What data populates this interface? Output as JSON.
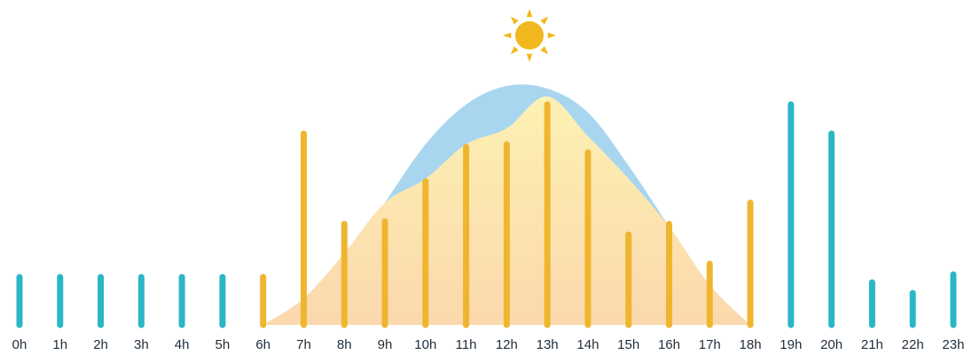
{
  "chart_data": {
    "type": "bar",
    "categories": [
      "0h",
      "1h",
      "2h",
      "3h",
      "4h",
      "5h",
      "6h",
      "7h",
      "8h",
      "9h",
      "10h",
      "11h",
      "12h",
      "13h",
      "14h",
      "15h",
      "16h",
      "17h",
      "18h",
      "19h",
      "20h",
      "21h",
      "22h",
      "23h"
    ],
    "values": [
      18,
      18,
      18,
      18,
      18,
      18,
      18,
      72,
      38,
      39,
      54,
      67,
      68,
      83,
      65,
      34,
      38,
      23,
      46,
      83,
      72,
      16,
      12,
      19
    ],
    "daylight_hours": [
      6,
      18
    ],
    "ylim": [
      0,
      100
    ],
    "grid": false,
    "title": "",
    "xlabel": "",
    "ylabel": "",
    "solar_curve": [
      {
        "x": 6,
        "y": 0
      },
      {
        "x": 7,
        "y": 10
      },
      {
        "x": 8,
        "y": 27
      },
      {
        "x": 9,
        "y": 46
      },
      {
        "x": 10,
        "y": 55
      },
      {
        "x": 11,
        "y": 68
      },
      {
        "x": 12,
        "y": 74
      },
      {
        "x": 13,
        "y": 86
      },
      {
        "x": 14,
        "y": 71
      },
      {
        "x": 15,
        "y": 55
      },
      {
        "x": 16,
        "y": 37
      },
      {
        "x": 17,
        "y": 15
      },
      {
        "x": 18,
        "y": 0
      }
    ],
    "potential_curve": [
      {
        "x": 9,
        "y": 46
      },
      {
        "x": 10,
        "y": 68
      },
      {
        "x": 11,
        "y": 83
      },
      {
        "x": 12,
        "y": 90
      },
      {
        "x": 13,
        "y": 89
      },
      {
        "x": 14,
        "y": 80
      },
      {
        "x": 15,
        "y": 60
      },
      {
        "x": 16,
        "y": 37
      }
    ],
    "colors": {
      "night_bar": "#2bb6c6",
      "day_bar": "#f0b52e",
      "solar_fill_top": "#fdf1b3",
      "solar_fill_bottom": "#fbd8ad",
      "potential_fill": "#a9d6ef",
      "sun": "#f2b81f"
    },
    "icons": [
      "sun-icon"
    ]
  }
}
